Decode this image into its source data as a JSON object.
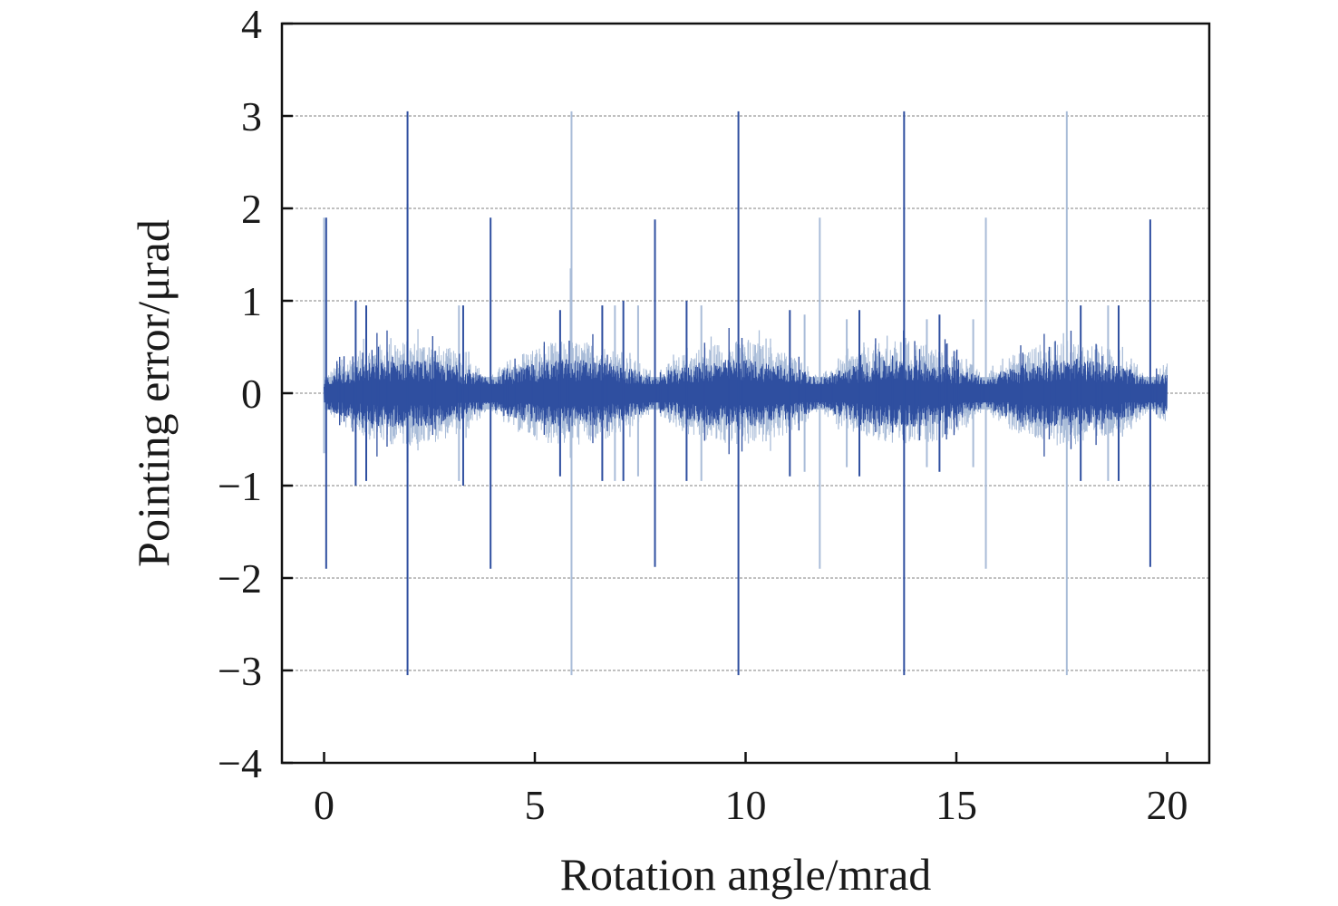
{
  "chart_data": {
    "type": "line",
    "xlabel": "Rotation angle/mrad",
    "ylabel": "Pointing error/μrad",
    "xlim": [
      -1,
      21
    ],
    "ylim": [
      -4,
      4
    ],
    "x_ticks": [
      0,
      5,
      10,
      15,
      20
    ],
    "x_tick_labels": [
      "0",
      "5",
      "10",
      "15",
      "20"
    ],
    "y_ticks": [
      -4,
      -3,
      -2,
      -1,
      0,
      1,
      2,
      3,
      4
    ],
    "y_tick_labels": [
      "−4",
      "−3",
      "−2",
      "−1",
      "0",
      "1",
      "2",
      "3",
      "4"
    ],
    "grid": "horizontal-dashed",
    "colors": {
      "dark": "#2f4fa0",
      "light": "#a9bcd8",
      "frame": "#111111"
    },
    "series": [
      {
        "color": "#2f4fa0",
        "x_range": [
          0,
          20
        ],
        "baseline_band": 0.2,
        "envelope": "periodic bursts every ~3.9 mrad, peak ~0.45",
        "spikes": [
          {
            "x": 0.05,
            "max": 1.9,
            "min": -1.9
          },
          {
            "x": 1.98,
            "max": 3.05,
            "min": -3.05
          },
          {
            "x": 3.95,
            "max": 1.9,
            "min": -1.9
          },
          {
            "x": 7.85,
            "max": 1.88,
            "min": -1.88
          },
          {
            "x": 9.83,
            "max": 3.05,
            "min": -3.05
          },
          {
            "x": 13.76,
            "max": 3.05,
            "min": -3.05
          },
          {
            "x": 19.6,
            "max": 1.88,
            "min": -1.88
          },
          {
            "x": 0.75,
            "max": 1.0,
            "min": -1.0
          },
          {
            "x": 1.0,
            "max": 0.95,
            "min": -0.95
          },
          {
            "x": 3.3,
            "max": 0.95,
            "min": -1.0
          },
          {
            "x": 5.6,
            "max": 0.9,
            "min": -0.9
          },
          {
            "x": 6.6,
            "max": 0.95,
            "min": -0.95
          },
          {
            "x": 7.1,
            "max": 1.0,
            "min": -0.95
          },
          {
            "x": 8.6,
            "max": 1.0,
            "min": -0.95
          },
          {
            "x": 11.05,
            "max": 0.9,
            "min": -0.9
          },
          {
            "x": 12.7,
            "max": 0.9,
            "min": -0.9
          },
          {
            "x": 14.6,
            "max": 0.85,
            "min": -0.85
          },
          {
            "x": 17.95,
            "max": 0.95,
            "min": -0.95
          },
          {
            "x": 18.85,
            "max": 0.95,
            "min": -0.95
          }
        ]
      },
      {
        "color": "#a9bcd8",
        "x_range": [
          0,
          20
        ],
        "baseline_band": 0.35,
        "spikes": [
          {
            "x": 0.0,
            "max": 1.9,
            "min": -0.65
          },
          {
            "x": 1.98,
            "max": 2.05,
            "min": -0.75
          },
          {
            "x": 5.87,
            "max": 3.05,
            "min": -3.05
          },
          {
            "x": 11.76,
            "max": 1.9,
            "min": -1.9
          },
          {
            "x": 15.7,
            "max": 1.9,
            "min": -1.9
          },
          {
            "x": 17.62,
            "max": 3.05,
            "min": -3.05
          },
          {
            "x": 5.85,
            "max": 1.35,
            "min": -0.7
          },
          {
            "x": 3.2,
            "max": 0.95,
            "min": -0.95
          },
          {
            "x": 6.9,
            "max": 0.95,
            "min": -0.95
          },
          {
            "x": 7.45,
            "max": 0.95,
            "min": -0.9
          },
          {
            "x": 8.95,
            "max": 0.95,
            "min": -0.95
          },
          {
            "x": 11.4,
            "max": 0.85,
            "min": -0.85
          },
          {
            "x": 12.4,
            "max": 0.8,
            "min": -0.8
          },
          {
            "x": 14.3,
            "max": 0.8,
            "min": -0.8
          },
          {
            "x": 15.4,
            "max": 0.8,
            "min": -0.8
          },
          {
            "x": 18.6,
            "max": 0.95,
            "min": -0.95
          }
        ]
      }
    ]
  }
}
